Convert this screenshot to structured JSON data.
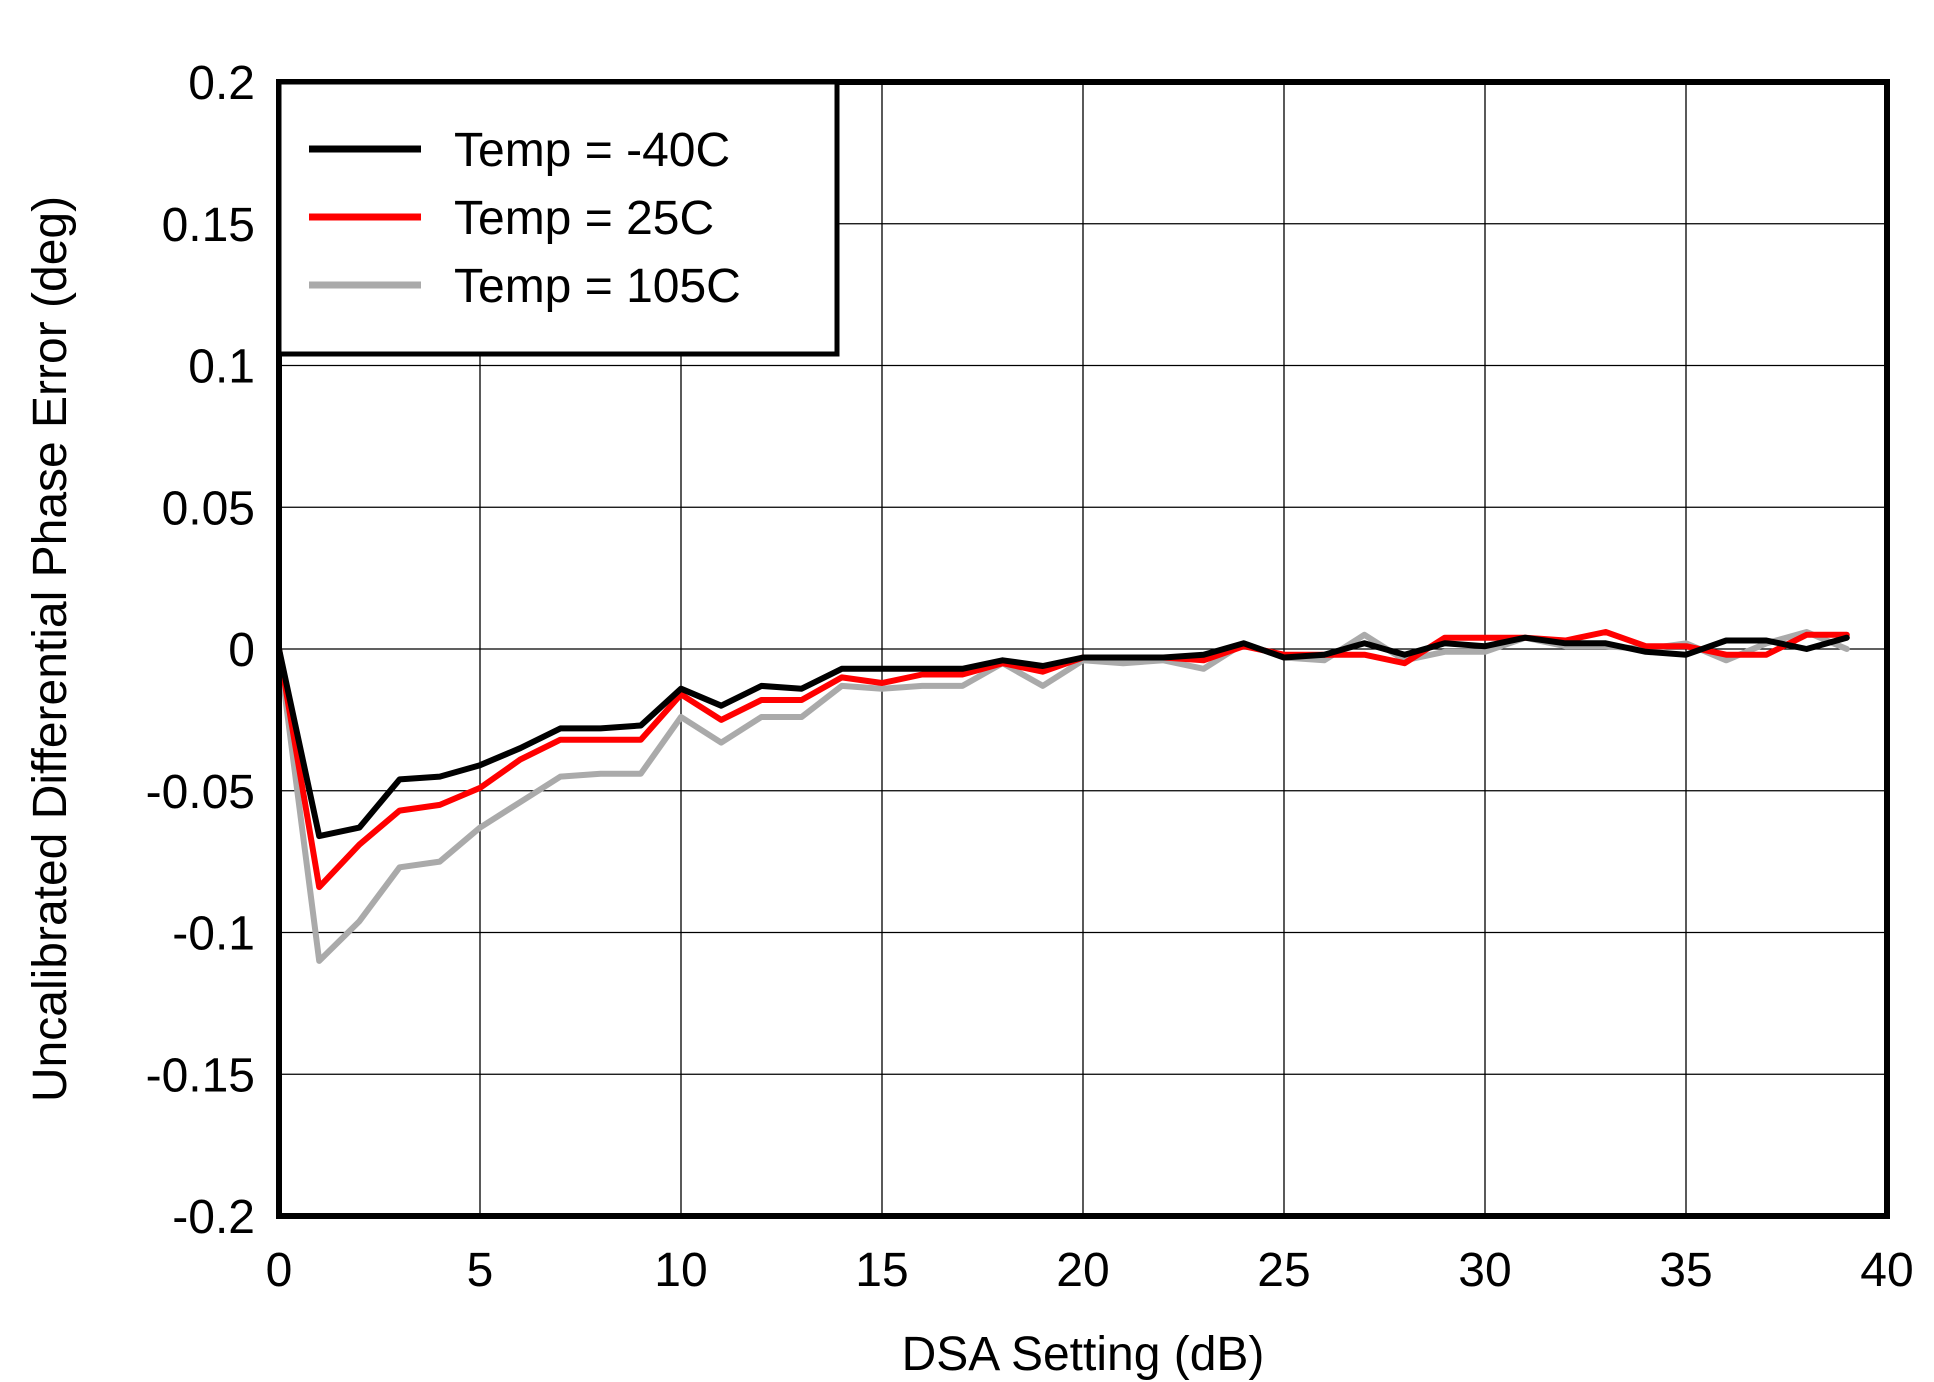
{
  "chart_data": {
    "type": "line",
    "title": "",
    "xlabel": "DSA Setting (dB)",
    "ylabel": "Uncalibrated Differential Phase Error (deg)",
    "xlim": [
      0,
      40
    ],
    "ylim": [
      -0.2,
      0.2
    ],
    "xticks": [
      0,
      5,
      10,
      15,
      20,
      25,
      30,
      35,
      40
    ],
    "xtick_labels": [
      "0",
      "5",
      "10",
      "15",
      "20",
      "25",
      "30",
      "35",
      "40"
    ],
    "yticks": [
      0.2,
      0.15,
      0.1,
      0.05,
      0,
      -0.05,
      -0.1,
      -0.15,
      -0.2
    ],
    "ytick_labels": [
      "0.2",
      "0.15",
      "0.1",
      "0.05",
      "0",
      "-0.05",
      "-0.1",
      "-0.15",
      "-0.2"
    ],
    "grid": true,
    "legend_position": "top-left",
    "x": [
      0,
      1,
      2,
      3,
      4,
      5,
      6,
      7,
      8,
      9,
      10,
      11,
      12,
      13,
      14,
      15,
      16,
      17,
      18,
      19,
      20,
      21,
      22,
      23,
      24,
      25,
      26,
      27,
      28,
      29,
      30,
      31,
      32,
      33,
      34,
      35,
      36,
      37,
      38,
      39
    ],
    "series": [
      {
        "name": "Temp = -40C",
        "color": "#000000",
        "values": [
          0,
          -0.066,
          -0.063,
          -0.046,
          -0.045,
          -0.041,
          -0.035,
          -0.028,
          -0.028,
          -0.027,
          -0.014,
          -0.02,
          -0.013,
          -0.014,
          -0.007,
          -0.007,
          -0.007,
          -0.007,
          -0.004,
          -0.006,
          -0.003,
          -0.003,
          -0.003,
          -0.002,
          0.002,
          -0.003,
          -0.002,
          0.002,
          -0.002,
          0.002,
          0.001,
          0.004,
          0.002,
          0.002,
          -0.001,
          -0.002,
          0.003,
          0.003,
          0.0,
          0.004
        ]
      },
      {
        "name": "Temp = 25C",
        "color": "#ff0000",
        "values": [
          0,
          -0.084,
          -0.069,
          -0.057,
          -0.055,
          -0.049,
          -0.039,
          -0.032,
          -0.032,
          -0.032,
          -0.016,
          -0.025,
          -0.018,
          -0.018,
          -0.01,
          -0.012,
          -0.009,
          -0.009,
          -0.005,
          -0.008,
          -0.003,
          -0.003,
          -0.003,
          -0.004,
          0.001,
          -0.002,
          -0.002,
          -0.002,
          -0.005,
          0.004,
          0.004,
          0.004,
          0.003,
          0.006,
          0.001,
          0.001,
          -0.002,
          -0.002,
          0.005,
          0.005
        ]
      },
      {
        "name": "Temp = 105C",
        "color": "#aaaaaa",
        "values": [
          0,
          -0.11,
          -0.096,
          -0.077,
          -0.075,
          -0.063,
          -0.054,
          -0.045,
          -0.044,
          -0.044,
          -0.024,
          -0.033,
          -0.024,
          -0.024,
          -0.013,
          -0.014,
          -0.013,
          -0.013,
          -0.005,
          -0.013,
          -0.004,
          -0.005,
          -0.004,
          -0.007,
          0.002,
          -0.003,
          -0.004,
          0.005,
          -0.004,
          -0.001,
          -0.001,
          0.004,
          0.001,
          0.001,
          0.0,
          0.002,
          -0.004,
          0.002,
          0.006,
          0.0
        ]
      }
    ]
  }
}
